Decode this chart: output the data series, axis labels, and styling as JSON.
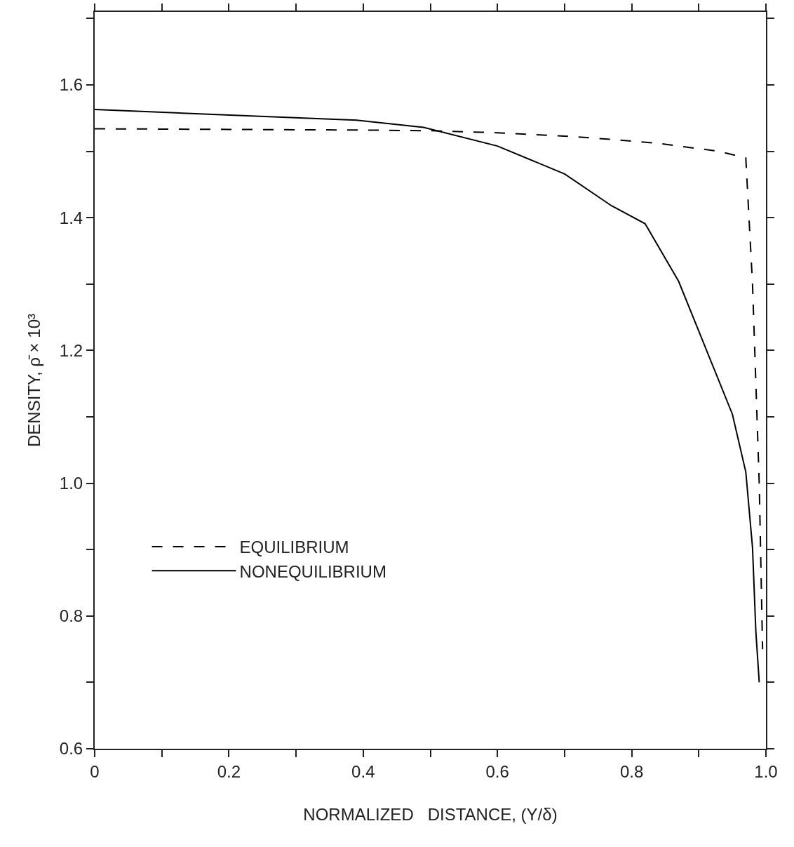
{
  "chart_data": {
    "type": "line",
    "xlabel": "NORMALIZED   DISTANCE, (Y/δ)",
    "ylabel": "DENSITY, ρ̄ × 10³",
    "xlim": [
      0,
      1
    ],
    "ylim": [
      0.6,
      1.71
    ],
    "xticks": [
      0,
      {
        "value": 0.1,
        "label": null
      },
      0.2,
      {
        "value": 0.3,
        "label": null
      },
      0.4,
      {
        "value": 0.5,
        "label": null
      },
      0.6,
      {
        "value": 0.7,
        "label": null
      },
      0.8,
      {
        "value": 0.9,
        "label": null
      },
      {
        "value": 1,
        "label": "1.0"
      }
    ],
    "yticks": [
      0.6,
      {
        "value": 0.7,
        "label": null
      },
      0.8,
      {
        "value": 0.9,
        "label": null
      },
      {
        "value": 1,
        "label": "1.0"
      },
      {
        "value": 1.1,
        "label": null
      },
      1.2,
      {
        "value": 1.3,
        "label": null
      },
      1.4,
      {
        "value": 1.5,
        "label": null
      },
      1.6,
      {
        "value": 1.7,
        "label": null
      }
    ],
    "grid": false,
    "legend": "bottom left",
    "marker": "none",
    "series": [
      {
        "name": "EQUILIBRIUM",
        "color": "#000000",
        "line_style": "dashed",
        "x": [
          0,
          0.2,
          0.4,
          0.5,
          0.6,
          0.7,
          0.77,
          0.84,
          0.93,
          0.97,
          0.98,
          0.99,
          0.995
        ],
        "values": [
          1.534,
          1.533,
          1.532,
          1.531,
          1.528,
          1.523,
          1.518,
          1.512,
          1.5,
          1.49,
          1.3,
          1.0,
          0.75
        ]
      },
      {
        "name": "NONEQUILIBRIUM",
        "color": "#000000",
        "line_style": "solid",
        "x": [
          0,
          0.24,
          0.39,
          0.49,
          0.6,
          0.7,
          0.77,
          0.82,
          0.87,
          0.91,
          0.95,
          0.97,
          0.98,
          0.985,
          0.99
        ],
        "values": [
          1.563,
          1.553,
          1.547,
          1.536,
          1.508,
          1.466,
          1.418,
          1.391,
          1.304,
          1.204,
          1.104,
          1.017,
          0.903,
          0.776,
          0.7
        ]
      }
    ]
  }
}
